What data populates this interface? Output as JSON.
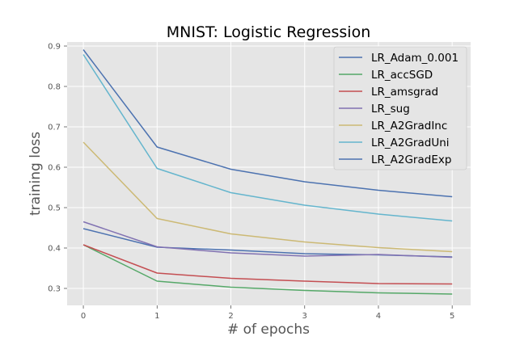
{
  "chart_data": {
    "type": "line",
    "title": "MNIST: Logistic Regression",
    "xlabel": "# of epochs",
    "ylabel": "training loss",
    "x": [
      0,
      1,
      2,
      3,
      4,
      5
    ],
    "xticks": [
      0,
      1,
      2,
      3,
      4,
      5
    ],
    "yticks": [
      0.3,
      0.4,
      0.5,
      0.6,
      0.7,
      0.8,
      0.9
    ],
    "xlim": [
      -0.22,
      5.25
    ],
    "ylim": [
      0.258,
      0.91
    ],
    "grid": true,
    "background": "#e5e5e5",
    "legend_position": "top-right",
    "series": [
      {
        "name": "LR_Adam_0.001",
        "color": "#4c72b0",
        "values": [
          0.448,
          0.402,
          0.395,
          0.386,
          0.383,
          0.378
        ]
      },
      {
        "name": "LR_accSGD",
        "color": "#55a868",
        "values": [
          0.408,
          0.318,
          0.303,
          0.295,
          0.289,
          0.286
        ]
      },
      {
        "name": "LR_amsgrad",
        "color": "#c44e52",
        "values": [
          0.408,
          0.338,
          0.325,
          0.318,
          0.312,
          0.311
        ]
      },
      {
        "name": "LR_sug",
        "color": "#8172b2",
        "values": [
          0.465,
          0.403,
          0.388,
          0.38,
          0.384,
          0.377
        ]
      },
      {
        "name": "LR_A2GradInc",
        "color": "#ccb974",
        "values": [
          0.662,
          0.473,
          0.435,
          0.415,
          0.401,
          0.391
        ]
      },
      {
        "name": "LR_A2GradUni",
        "color": "#64b5cd",
        "values": [
          0.879,
          0.597,
          0.537,
          0.506,
          0.484,
          0.467
        ]
      },
      {
        "name": "LR_A2GradExp",
        "color": "#4c72b0",
        "values": [
          0.891,
          0.65,
          0.595,
          0.564,
          0.543,
          0.527
        ]
      }
    ]
  }
}
